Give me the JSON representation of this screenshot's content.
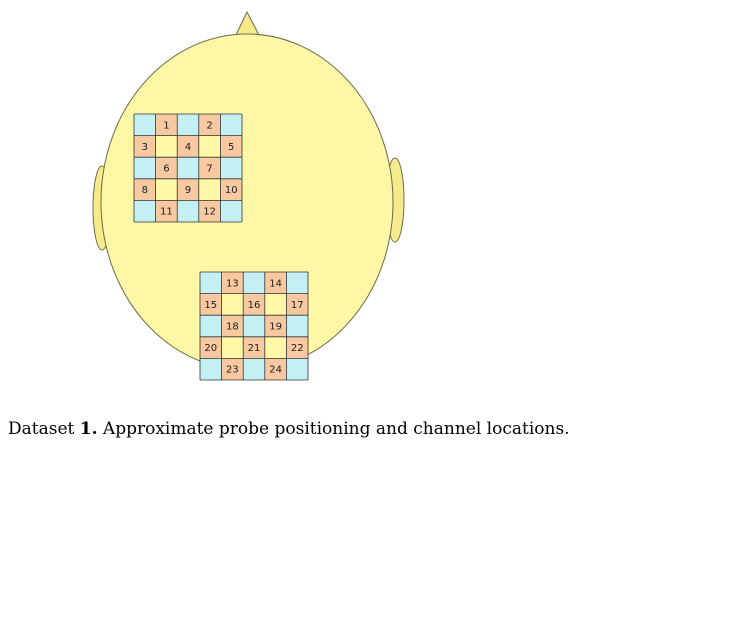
{
  "colors": {
    "head_fill": "#fdf7a6",
    "head_stroke": "#6b6b4a",
    "ear_fill": "#f6eb8a",
    "nose_fill": "#f6eb8a",
    "channel_cell": "#f8c8a0",
    "source_cell": "#c4f0f3",
    "blank_cell": "#fdf7a6",
    "grid_line": "#333333"
  },
  "probes": [
    {
      "name": "probe-1",
      "rows": [
        [
          {
            "t": "s"
          },
          {
            "t": "c",
            "label": "1"
          },
          {
            "t": "s"
          },
          {
            "t": "c",
            "label": "2"
          },
          {
            "t": "s"
          }
        ],
        [
          {
            "t": "c",
            "label": "3"
          },
          {
            "t": "b"
          },
          {
            "t": "c",
            "label": "4"
          },
          {
            "t": "b"
          },
          {
            "t": "c",
            "label": "5"
          }
        ],
        [
          {
            "t": "s"
          },
          {
            "t": "c",
            "label": "6"
          },
          {
            "t": "s"
          },
          {
            "t": "c",
            "label": "7"
          },
          {
            "t": "s"
          }
        ],
        [
          {
            "t": "c",
            "label": "8"
          },
          {
            "t": "b"
          },
          {
            "t": "c",
            "label": "9"
          },
          {
            "t": "b"
          },
          {
            "t": "c",
            "label": "10"
          }
        ],
        [
          {
            "t": "s"
          },
          {
            "t": "c",
            "label": "11"
          },
          {
            "t": "s"
          },
          {
            "t": "c",
            "label": "12"
          },
          {
            "t": "s"
          }
        ]
      ]
    },
    {
      "name": "probe-2",
      "rows": [
        [
          {
            "t": "s"
          },
          {
            "t": "c",
            "label": "13"
          },
          {
            "t": "s"
          },
          {
            "t": "c",
            "label": "14"
          },
          {
            "t": "s"
          }
        ],
        [
          {
            "t": "c",
            "label": "15"
          },
          {
            "t": "b"
          },
          {
            "t": "c",
            "label": "16"
          },
          {
            "t": "b"
          },
          {
            "t": "c",
            "label": "17"
          }
        ],
        [
          {
            "t": "s"
          },
          {
            "t": "c",
            "label": "18"
          },
          {
            "t": "s"
          },
          {
            "t": "c",
            "label": "19"
          },
          {
            "t": "s"
          }
        ],
        [
          {
            "t": "c",
            "label": "20"
          },
          {
            "t": "b"
          },
          {
            "t": "c",
            "label": "21"
          },
          {
            "t": "b"
          },
          {
            "t": "c",
            "label": "22"
          }
        ],
        [
          {
            "t": "s"
          },
          {
            "t": "c",
            "label": "23"
          },
          {
            "t": "s"
          },
          {
            "t": "c",
            "label": "24"
          },
          {
            "t": "s"
          }
        ]
      ]
    }
  ],
  "caption": {
    "prefix": "Dataset",
    "number": "1.",
    "text": "Approximate probe positioning and channel locations."
  }
}
